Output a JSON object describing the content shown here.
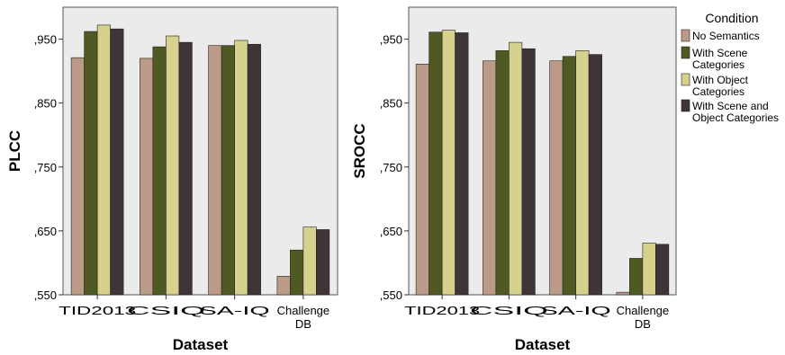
{
  "legend": {
    "title": "Condition",
    "entries": [
      {
        "lines": [
          "No Semantics"
        ],
        "color": "#bc9a88"
      },
      {
        "lines": [
          "With Scene",
          "Categories"
        ],
        "color": "#4f5a22"
      },
      {
        "lines": [
          "With Object",
          "Categories"
        ],
        "color": "#d6d18c"
      },
      {
        "lines": [
          "With Scene and",
          "Object Categories"
        ],
        "color": "#3f3539"
      }
    ]
  },
  "chart_data": [
    {
      "type": "bar",
      "xlabel": "Dataset",
      "ylabel": "PLCC",
      "ylim": [
        0.55,
        1.0
      ],
      "yticks": [
        0.55,
        0.65,
        0.75,
        0.85,
        0.95
      ],
      "ytick_labels": [
        ",550",
        ",650",
        ",750",
        ",850",
        ",950"
      ],
      "grid": false,
      "legend_position": "right",
      "categories": [
        [
          "TID2013"
        ],
        [
          "CSIQ"
        ],
        [
          "SA-IQ"
        ],
        [
          "Challenge",
          "DB"
        ]
      ],
      "series": [
        {
          "name": "No Semantics",
          "values": [
            0.921,
            0.92,
            0.94,
            0.579
          ]
        },
        {
          "name": "With Scene Categories",
          "values": [
            0.962,
            0.938,
            0.94,
            0.62
          ]
        },
        {
          "name": "With Object Categories",
          "values": [
            0.972,
            0.955,
            0.948,
            0.656
          ]
        },
        {
          "name": "With Scene and Object Categories",
          "values": [
            0.966,
            0.945,
            0.942,
            0.652
          ]
        }
      ]
    },
    {
      "type": "bar",
      "xlabel": "Dataset",
      "ylabel": "SROCC",
      "ylim": [
        0.55,
        1.0
      ],
      "yticks": [
        0.55,
        0.65,
        0.75,
        0.85,
        0.95
      ],
      "ytick_labels": [
        ",550",
        ",650",
        ",750",
        ",850",
        ",950"
      ],
      "grid": false,
      "legend_position": "right",
      "categories": [
        [
          "TID2013"
        ],
        [
          "CSIQ"
        ],
        [
          "SA-IQ"
        ],
        [
          "Challenge",
          "DB"
        ]
      ],
      "series": [
        {
          "name": "No Semantics",
          "values": [
            0.911,
            0.916,
            0.916,
            0.554
          ]
        },
        {
          "name": "With Scene Categories",
          "values": [
            0.961,
            0.932,
            0.923,
            0.607
          ]
        },
        {
          "name": "With Object Categories",
          "values": [
            0.964,
            0.945,
            0.932,
            0.631
          ]
        },
        {
          "name": "With Scene and Object Categories",
          "values": [
            0.96,
            0.935,
            0.926,
            0.629
          ]
        }
      ]
    }
  ]
}
